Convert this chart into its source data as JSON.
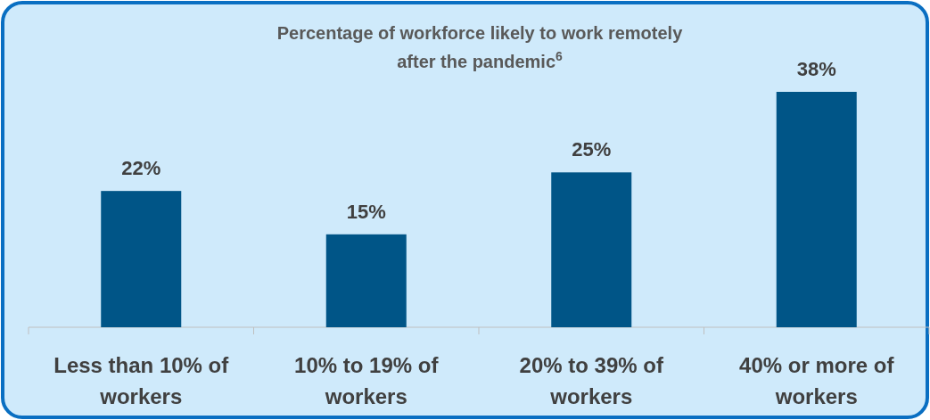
{
  "chart_data": {
    "type": "bar",
    "title": "Percentage of workforce likely to work remotely after the pandemic$^{6}$",
    "categories": [
      "Less than 10% of workers",
      "10% to 19% of workers",
      "20% to 39% of workers",
      "40% or more of workers"
    ],
    "values": [
      22,
      15,
      25,
      38
    ],
    "value_labels": [
      "22%",
      "15%",
      "25%",
      "38%"
    ],
    "color": "#005587"
  }
}
